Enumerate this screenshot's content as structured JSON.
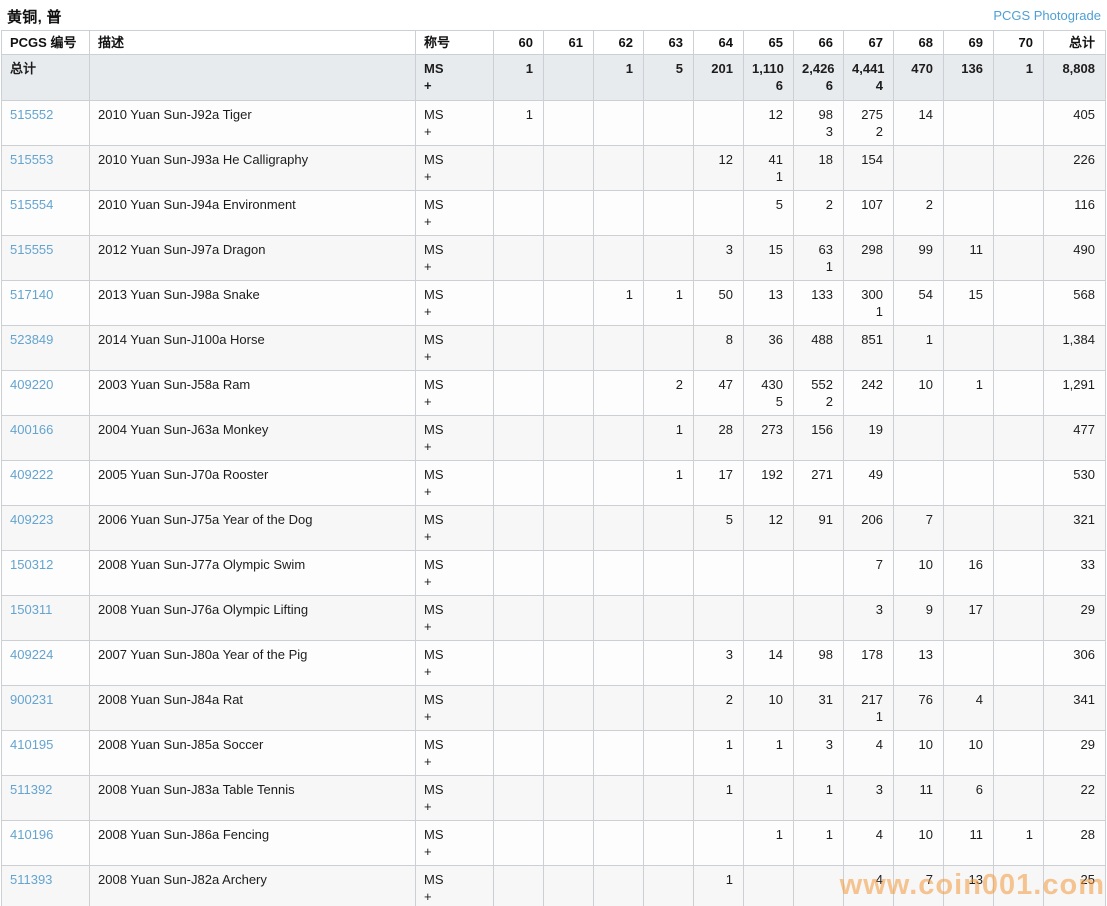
{
  "page": {
    "title": "黄铜, 普",
    "photograde_link": "PCGS Photograde",
    "watermark": "www.coin001.com"
  },
  "colors": {
    "link_blue": "#64a4cf",
    "photograde_blue": "#4f9fd4",
    "total_row_bg": "#e8ebee",
    "alt_row_bg": "#f7f7f7",
    "border": "#ccd0d4",
    "watermark_orange": "#f29a3c"
  },
  "table": {
    "headers": {
      "pcgs_number": "PCGS 编号",
      "description": "描述",
      "designation": "称号",
      "grades": [
        "60",
        "61",
        "62",
        "63",
        "64",
        "65",
        "66",
        "67",
        "68",
        "69",
        "70"
      ],
      "total": "总计"
    },
    "designation_lines": [
      "MS",
      "+"
    ],
    "total_row": {
      "label": "总计",
      "cells": [
        [
          "1",
          ""
        ],
        [
          "",
          ""
        ],
        [
          "1",
          ""
        ],
        [
          "5",
          ""
        ],
        [
          "201",
          ""
        ],
        [
          "1,110",
          "6"
        ],
        [
          "2,426",
          "6"
        ],
        [
          "4,441",
          "4"
        ],
        [
          "470",
          ""
        ],
        [
          "136",
          ""
        ],
        [
          "1",
          ""
        ],
        [
          "8,808",
          ""
        ]
      ]
    },
    "rows": [
      {
        "pcgs_number": "515552",
        "description": "2010 Yuan Sun-J92a Tiger",
        "cells": [
          [
            "1",
            ""
          ],
          [
            "",
            ""
          ],
          [
            "",
            ""
          ],
          [
            "",
            ""
          ],
          [
            "",
            ""
          ],
          [
            "12",
            ""
          ],
          [
            "98",
            "3"
          ],
          [
            "275",
            "2"
          ],
          [
            "14",
            ""
          ],
          [
            "",
            ""
          ],
          [
            "",
            ""
          ],
          [
            "405",
            ""
          ]
        ]
      },
      {
        "pcgs_number": "515553",
        "description": "2010 Yuan Sun-J93a He Calligraphy",
        "cells": [
          [
            "",
            ""
          ],
          [
            "",
            ""
          ],
          [
            "",
            ""
          ],
          [
            "",
            ""
          ],
          [
            "12",
            ""
          ],
          [
            "41",
            "1"
          ],
          [
            "18",
            ""
          ],
          [
            "154",
            ""
          ],
          [
            "",
            ""
          ],
          [
            "",
            ""
          ],
          [
            "",
            ""
          ],
          [
            "226",
            ""
          ]
        ]
      },
      {
        "pcgs_number": "515554",
        "description": "2010 Yuan Sun-J94a Environment",
        "cells": [
          [
            "",
            ""
          ],
          [
            "",
            ""
          ],
          [
            "",
            ""
          ],
          [
            "",
            ""
          ],
          [
            "",
            ""
          ],
          [
            "5",
            ""
          ],
          [
            "2",
            ""
          ],
          [
            "107",
            ""
          ],
          [
            "2",
            ""
          ],
          [
            "",
            ""
          ],
          [
            "",
            ""
          ],
          [
            "116",
            ""
          ]
        ]
      },
      {
        "pcgs_number": "515555",
        "description": "2012 Yuan Sun-J97a Dragon",
        "cells": [
          [
            "",
            ""
          ],
          [
            "",
            ""
          ],
          [
            "",
            ""
          ],
          [
            "",
            ""
          ],
          [
            "3",
            ""
          ],
          [
            "15",
            ""
          ],
          [
            "63",
            "1"
          ],
          [
            "298",
            ""
          ],
          [
            "99",
            ""
          ],
          [
            "11",
            ""
          ],
          [
            "",
            ""
          ],
          [
            "490",
            ""
          ]
        ]
      },
      {
        "pcgs_number": "517140",
        "description": "2013 Yuan Sun-J98a Snake",
        "cells": [
          [
            "",
            ""
          ],
          [
            "",
            ""
          ],
          [
            "1",
            ""
          ],
          [
            "1",
            ""
          ],
          [
            "50",
            ""
          ],
          [
            "13",
            ""
          ],
          [
            "133",
            ""
          ],
          [
            "300",
            "1"
          ],
          [
            "54",
            ""
          ],
          [
            "15",
            ""
          ],
          [
            "",
            ""
          ],
          [
            "568",
            ""
          ]
        ]
      },
      {
        "pcgs_number": "523849",
        "description": "2014 Yuan Sun-J100a Horse",
        "cells": [
          [
            "",
            ""
          ],
          [
            "",
            ""
          ],
          [
            "",
            ""
          ],
          [
            "",
            ""
          ],
          [
            "8",
            ""
          ],
          [
            "36",
            ""
          ],
          [
            "488",
            ""
          ],
          [
            "851",
            ""
          ],
          [
            "1",
            ""
          ],
          [
            "",
            ""
          ],
          [
            "",
            ""
          ],
          [
            "1,384",
            ""
          ]
        ]
      },
      {
        "pcgs_number": "409220",
        "description": "2003 Yuan Sun-J58a Ram",
        "cells": [
          [
            "",
            ""
          ],
          [
            "",
            ""
          ],
          [
            "",
            ""
          ],
          [
            "2",
            ""
          ],
          [
            "47",
            ""
          ],
          [
            "430",
            "5"
          ],
          [
            "552",
            "2"
          ],
          [
            "242",
            ""
          ],
          [
            "10",
            ""
          ],
          [
            "1",
            ""
          ],
          [
            "",
            ""
          ],
          [
            "1,291",
            ""
          ]
        ]
      },
      {
        "pcgs_number": "400166",
        "description": "2004 Yuan Sun-J63a Monkey",
        "cells": [
          [
            "",
            ""
          ],
          [
            "",
            ""
          ],
          [
            "",
            ""
          ],
          [
            "1",
            ""
          ],
          [
            "28",
            ""
          ],
          [
            "273",
            ""
          ],
          [
            "156",
            ""
          ],
          [
            "19",
            ""
          ],
          [
            "",
            ""
          ],
          [
            "",
            ""
          ],
          [
            "",
            ""
          ],
          [
            "477",
            ""
          ]
        ]
      },
      {
        "pcgs_number": "409222",
        "description": "2005 Yuan Sun-J70a Rooster",
        "cells": [
          [
            "",
            ""
          ],
          [
            "",
            ""
          ],
          [
            "",
            ""
          ],
          [
            "1",
            ""
          ],
          [
            "17",
            ""
          ],
          [
            "192",
            ""
          ],
          [
            "271",
            ""
          ],
          [
            "49",
            ""
          ],
          [
            "",
            ""
          ],
          [
            "",
            ""
          ],
          [
            "",
            ""
          ],
          [
            "530",
            ""
          ]
        ]
      },
      {
        "pcgs_number": "409223",
        "description": "2006 Yuan Sun-J75a Year of the Dog",
        "cells": [
          [
            "",
            ""
          ],
          [
            "",
            ""
          ],
          [
            "",
            ""
          ],
          [
            "",
            ""
          ],
          [
            "5",
            ""
          ],
          [
            "12",
            ""
          ],
          [
            "91",
            ""
          ],
          [
            "206",
            ""
          ],
          [
            "7",
            ""
          ],
          [
            "",
            ""
          ],
          [
            "",
            ""
          ],
          [
            "321",
            ""
          ]
        ]
      },
      {
        "pcgs_number": "150312",
        "description": "2008 Yuan Sun-J77a Olympic Swim",
        "cells": [
          [
            "",
            ""
          ],
          [
            "",
            ""
          ],
          [
            "",
            ""
          ],
          [
            "",
            ""
          ],
          [
            "",
            ""
          ],
          [
            "",
            ""
          ],
          [
            "",
            ""
          ],
          [
            "7",
            ""
          ],
          [
            "10",
            ""
          ],
          [
            "16",
            ""
          ],
          [
            "",
            ""
          ],
          [
            "33",
            ""
          ]
        ]
      },
      {
        "pcgs_number": "150311",
        "description": "2008 Yuan Sun-J76a Olympic Lifting",
        "cells": [
          [
            "",
            ""
          ],
          [
            "",
            ""
          ],
          [
            "",
            ""
          ],
          [
            "",
            ""
          ],
          [
            "",
            ""
          ],
          [
            "",
            ""
          ],
          [
            "",
            ""
          ],
          [
            "3",
            ""
          ],
          [
            "9",
            ""
          ],
          [
            "17",
            ""
          ],
          [
            "",
            ""
          ],
          [
            "29",
            ""
          ]
        ]
      },
      {
        "pcgs_number": "409224",
        "description": "2007 Yuan Sun-J80a Year of the Pig",
        "cells": [
          [
            "",
            ""
          ],
          [
            "",
            ""
          ],
          [
            "",
            ""
          ],
          [
            "",
            ""
          ],
          [
            "3",
            ""
          ],
          [
            "14",
            ""
          ],
          [
            "98",
            ""
          ],
          [
            "178",
            ""
          ],
          [
            "13",
            ""
          ],
          [
            "",
            ""
          ],
          [
            "",
            ""
          ],
          [
            "306",
            ""
          ]
        ]
      },
      {
        "pcgs_number": "900231",
        "description": "2008 Yuan Sun-J84a Rat",
        "cells": [
          [
            "",
            ""
          ],
          [
            "",
            ""
          ],
          [
            "",
            ""
          ],
          [
            "",
            ""
          ],
          [
            "2",
            ""
          ],
          [
            "10",
            ""
          ],
          [
            "31",
            ""
          ],
          [
            "217",
            "1"
          ],
          [
            "76",
            ""
          ],
          [
            "4",
            ""
          ],
          [
            "",
            ""
          ],
          [
            "341",
            ""
          ]
        ]
      },
      {
        "pcgs_number": "410195",
        "description": "2008 Yuan Sun-J85a Soccer",
        "cells": [
          [
            "",
            ""
          ],
          [
            "",
            ""
          ],
          [
            "",
            ""
          ],
          [
            "",
            ""
          ],
          [
            "1",
            ""
          ],
          [
            "1",
            ""
          ],
          [
            "3",
            ""
          ],
          [
            "4",
            ""
          ],
          [
            "10",
            ""
          ],
          [
            "10",
            ""
          ],
          [
            "",
            ""
          ],
          [
            "29",
            ""
          ]
        ]
      },
      {
        "pcgs_number": "511392",
        "description": "2008 Yuan Sun-J83a Table Tennis",
        "cells": [
          [
            "",
            ""
          ],
          [
            "",
            ""
          ],
          [
            "",
            ""
          ],
          [
            "",
            ""
          ],
          [
            "1",
            ""
          ],
          [
            "",
            ""
          ],
          [
            "1",
            ""
          ],
          [
            "3",
            ""
          ],
          [
            "11",
            ""
          ],
          [
            "6",
            ""
          ],
          [
            "",
            ""
          ],
          [
            "22",
            ""
          ]
        ]
      },
      {
        "pcgs_number": "410196",
        "description": "2008 Yuan Sun-J86a Fencing",
        "cells": [
          [
            "",
            ""
          ],
          [
            "",
            ""
          ],
          [
            "",
            ""
          ],
          [
            "",
            ""
          ],
          [
            "",
            ""
          ],
          [
            "1",
            ""
          ],
          [
            "1",
            ""
          ],
          [
            "4",
            ""
          ],
          [
            "10",
            ""
          ],
          [
            "11",
            ""
          ],
          [
            "1",
            ""
          ],
          [
            "28",
            ""
          ]
        ]
      },
      {
        "pcgs_number": "511393",
        "description": "2008 Yuan Sun-J82a Archery",
        "cells": [
          [
            "",
            ""
          ],
          [
            "",
            ""
          ],
          [
            "",
            ""
          ],
          [
            "",
            ""
          ],
          [
            "1",
            ""
          ],
          [
            "",
            ""
          ],
          [
            "",
            ""
          ],
          [
            "4",
            ""
          ],
          [
            "7",
            ""
          ],
          [
            "13",
            ""
          ],
          [
            "",
            ""
          ],
          [
            "25",
            ""
          ]
        ]
      }
    ]
  }
}
